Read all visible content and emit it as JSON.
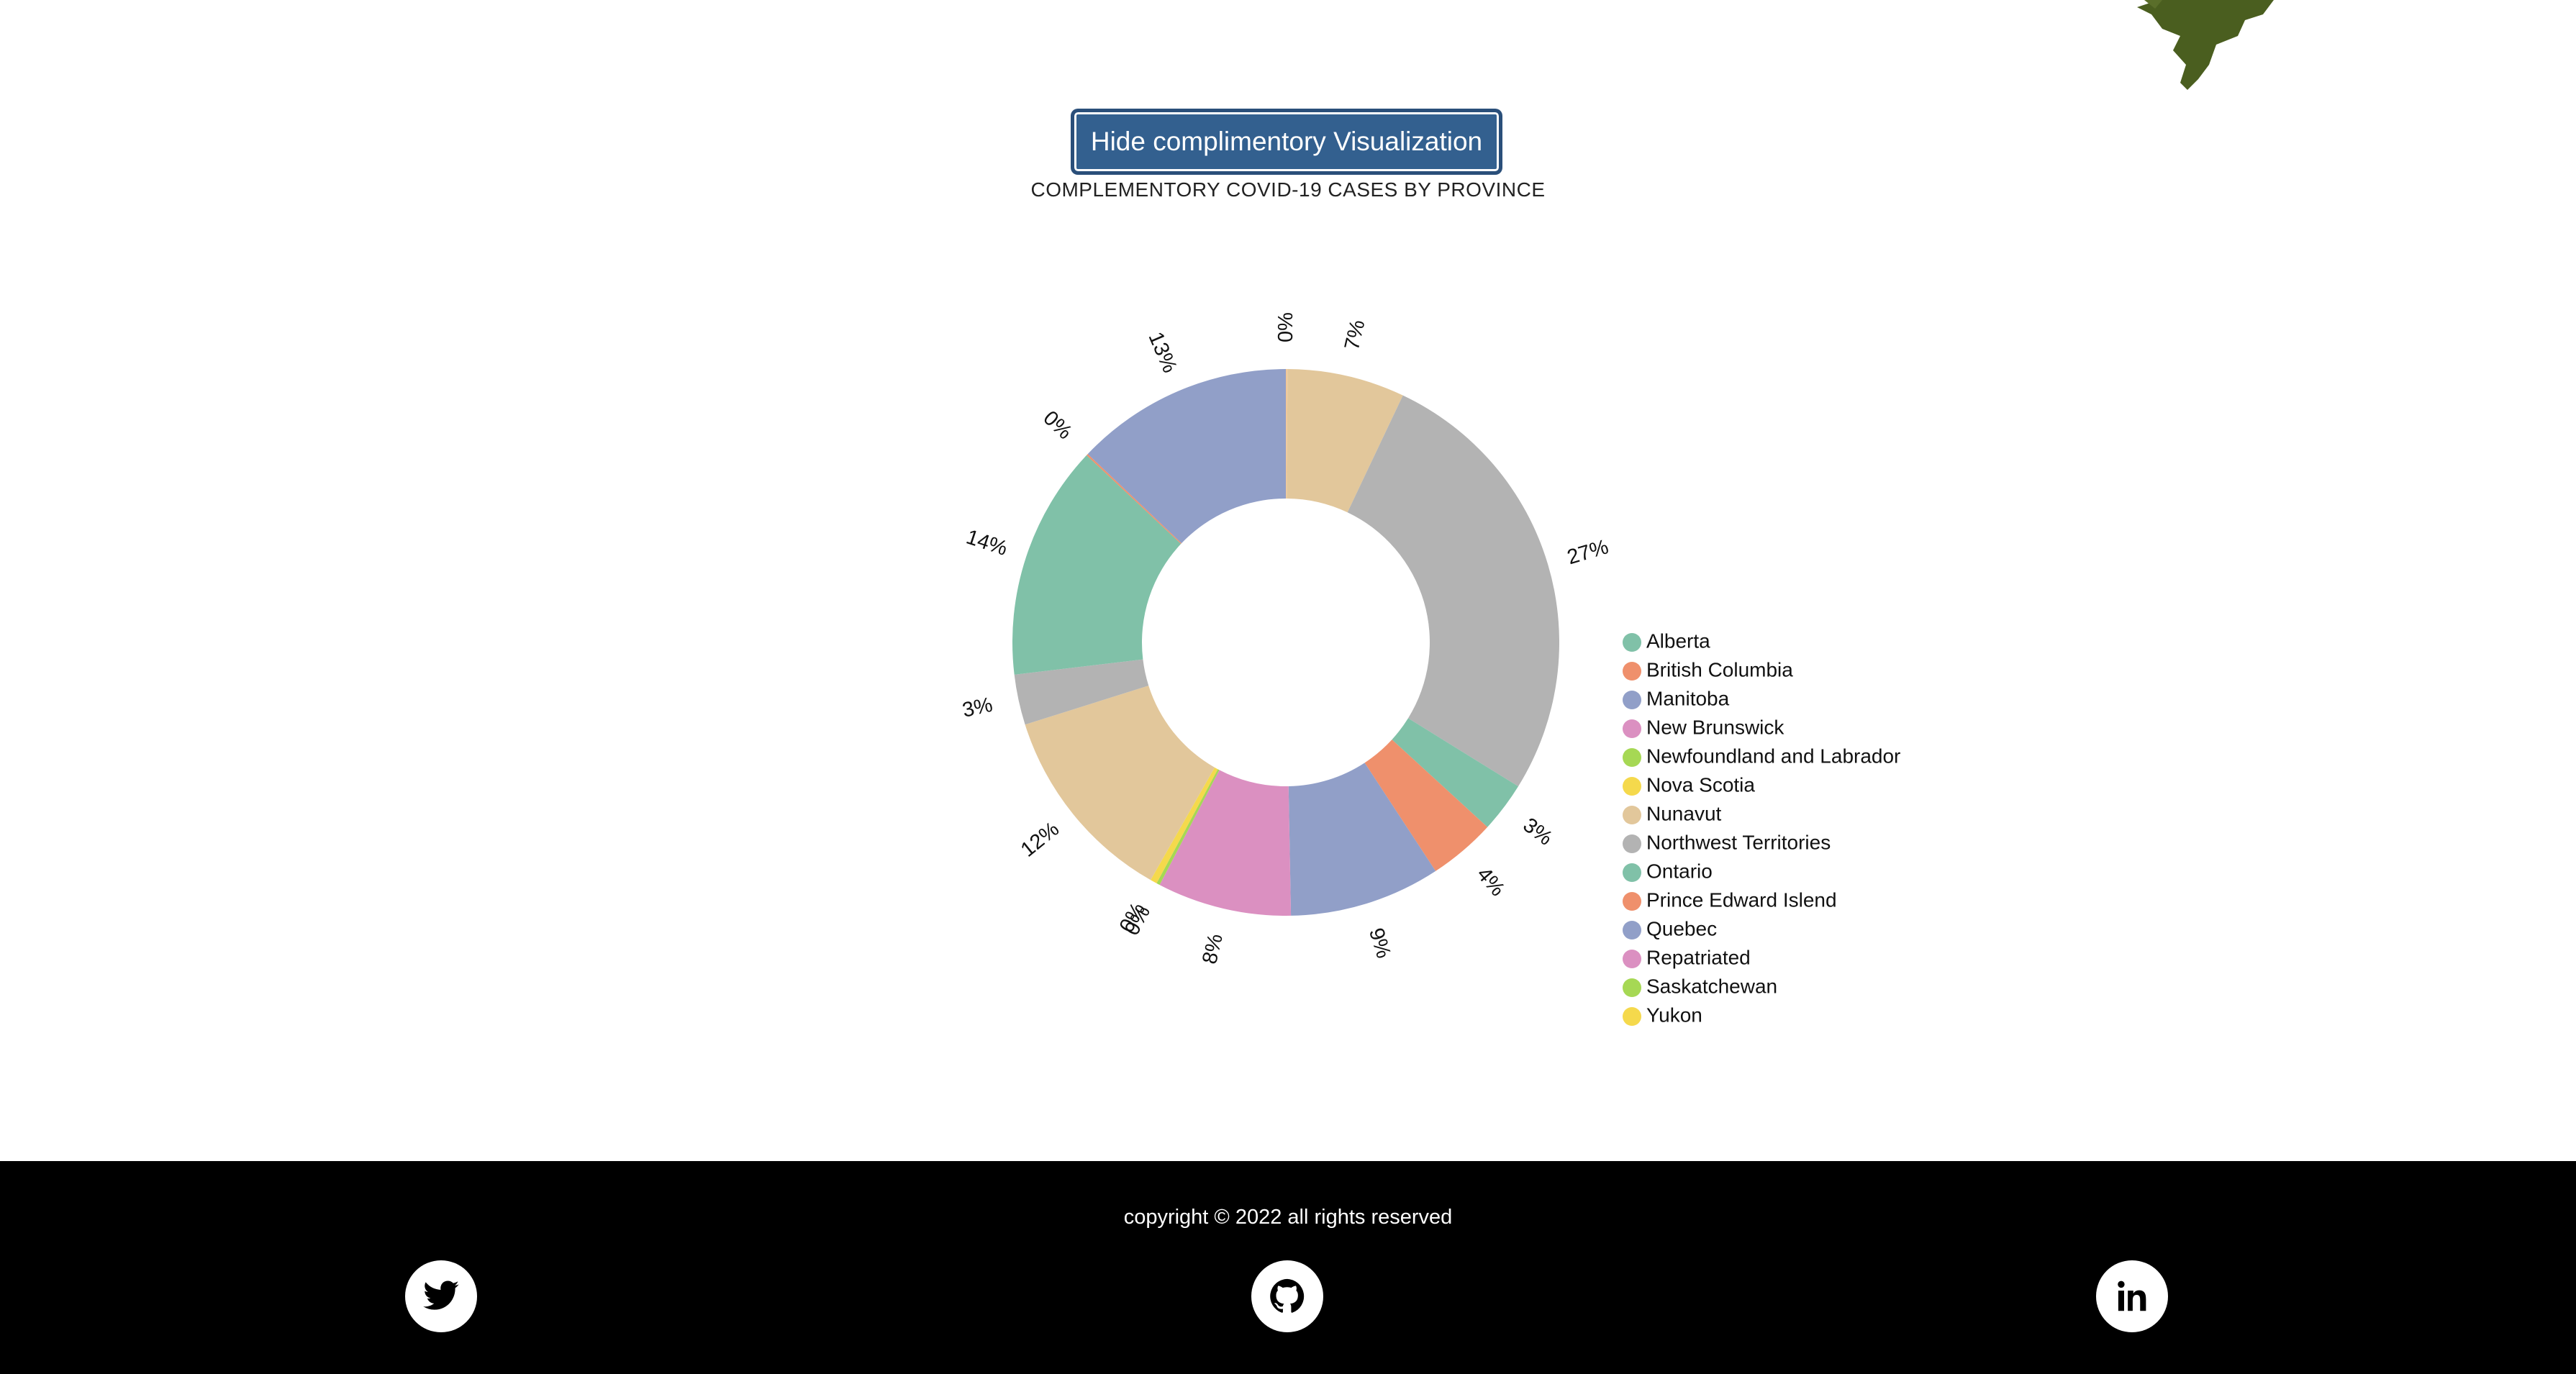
{
  "page": {
    "toggle_button": "Hide complimentory Visualization",
    "title": "COMPLEMENTORY COVID-19 CASES BY PROVINCE"
  },
  "footer": {
    "copyright": "copyright © 2022 all rights reserved",
    "social": [
      {
        "name": "twitter-icon"
      },
      {
        "name": "github-icon"
      },
      {
        "name": "linkedin-icon"
      }
    ]
  },
  "chart_data": {
    "type": "pie",
    "variant": "donut",
    "legend_position": "right",
    "slices": [
      {
        "label": "0%",
        "value": 0.1,
        "color": "#f0c89a"
      },
      {
        "label": "7%",
        "value": 7,
        "color": "#e2c79b"
      },
      {
        "label": "27%",
        "value": 27,
        "color": "#b3b3b3"
      },
      {
        "label": "3%",
        "value": 3,
        "color": "#80c1a8"
      },
      {
        "label": "4%",
        "value": 4,
        "color": "#ef906c"
      },
      {
        "label": "9%",
        "value": 9,
        "color": "#919fc8"
      },
      {
        "label": "8%",
        "value": 8,
        "color": "#db90c1"
      },
      {
        "label": "0%",
        "value": 0.2,
        "color": "#a6d854"
      },
      {
        "label": "0%",
        "value": 0.4,
        "color": "#f5d94c"
      },
      {
        "label": "12%",
        "value": 12,
        "color": "#e2c79b"
      },
      {
        "label": "3%",
        "value": 3,
        "color": "#b3b3b3"
      },
      {
        "label": "14%",
        "value": 14,
        "color": "#80c1a8"
      },
      {
        "label": "0%",
        "value": 0.1,
        "color": "#ef906c"
      },
      {
        "label": "13%",
        "value": 13,
        "color": "#919fc8"
      }
    ],
    "legend": [
      {
        "label": "Alberta",
        "color": "#80c1a8"
      },
      {
        "label": "British Columbia",
        "color": "#ef906c"
      },
      {
        "label": "Manitoba",
        "color": "#919fc8"
      },
      {
        "label": "New Brunswick",
        "color": "#db90c1"
      },
      {
        "label": "Newfoundland and Labrador",
        "color": "#a6d854"
      },
      {
        "label": "Nova Scotia",
        "color": "#f5d94c"
      },
      {
        "label": "Nunavut",
        "color": "#e2c79b"
      },
      {
        "label": "Northwest Territories",
        "color": "#b3b3b3"
      },
      {
        "label": "Ontario",
        "color": "#80c1a8"
      },
      {
        "label": "Prince Edward Islend",
        "color": "#ef906c"
      },
      {
        "label": "Quebec",
        "color": "#919fc8"
      },
      {
        "label": "Repatriated",
        "color": "#db90c1"
      },
      {
        "label": "Saskatchewan",
        "color": "#a6d854"
      },
      {
        "label": "Yukon",
        "color": "#f5d94c"
      }
    ]
  }
}
